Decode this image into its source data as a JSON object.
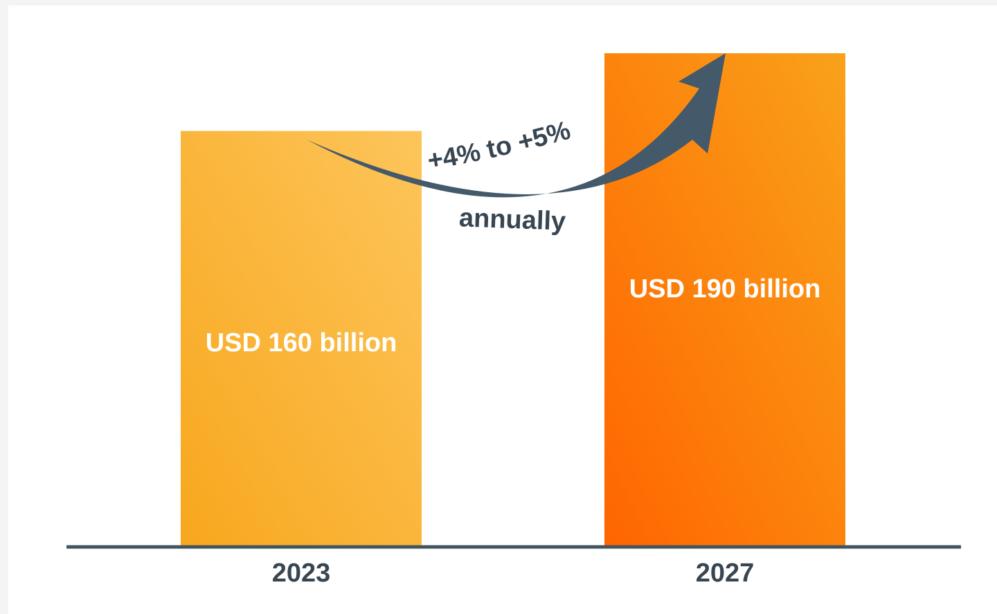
{
  "chart_data": {
    "type": "bar",
    "categories": [
      "2023",
      "2027"
    ],
    "values": [
      160,
      190
    ],
    "unit": "USD billion",
    "data_labels": [
      "USD 160 billion",
      "USD 190 billion"
    ],
    "annotation": {
      "line1": "+4% to +5%",
      "line2": "annually"
    },
    "grid": false,
    "legend": "none"
  },
  "colors": {
    "bar_2023_top": "#fdc55a",
    "bar_2023_bottom": "#f8a71e",
    "bar_2027_top": "#f9a21a",
    "bar_2027_bottom": "#ff6500",
    "axis": "#44545f",
    "arrow": "#44596a",
    "text_dark": "#384652"
  }
}
